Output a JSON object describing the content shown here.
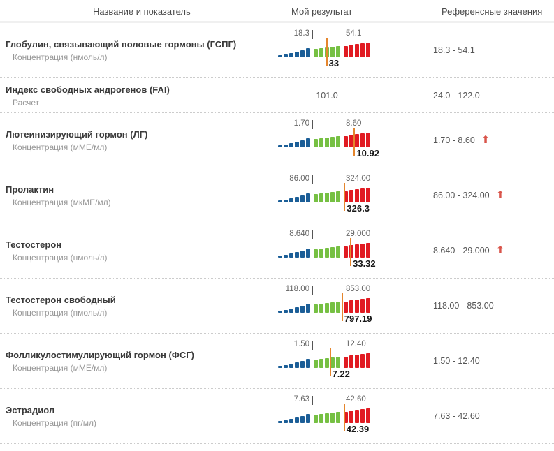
{
  "header": {
    "columns": [
      "Название и показатель",
      "Мой результат",
      "Референсные значения"
    ]
  },
  "colors": {
    "bar_blue": "#1b5e97",
    "bar_green": "#76c043",
    "bar_red": "#e11b22",
    "marker_orange": "#e5862d",
    "arrow_red": "#d9544a"
  },
  "icons": {
    "above_range_arrow": "⬆"
  },
  "chart_data": {
    "type": "table",
    "description": "Lab hormone results; each row has a segmented low(blue)/normal(green)/high(red) range bar with an orange marker at the measured value",
    "legend_zones": [
      "below-range (blue)",
      "in-range (green)",
      "above-range (red)"
    ],
    "rows": [
      {
        "name": "Глобулин, связывающий половые гормоны (ГСПГ)",
        "indicator": "Концентрация (нмоль/л)",
        "has_chart": true,
        "min": 18.3,
        "max": 54.1,
        "value": 33,
        "min_label": "18.3",
        "max_label": "54.1",
        "value_label": "33",
        "reference": "18.3 - 54.1",
        "above_range": false
      },
      {
        "name": "Индекс свободных андрогенов (FAI)",
        "indicator": "Расчет",
        "has_chart": false,
        "value": 101.0,
        "value_label": "101.0",
        "reference": "24.0 - 122.0",
        "above_range": false
      },
      {
        "name": "Лютеинизирующий гормон (ЛГ)",
        "indicator": "Концентрация (мМЕ/мл)",
        "has_chart": true,
        "min": 1.7,
        "max": 8.6,
        "value": 10.92,
        "min_label": "1.70",
        "max_label": "8.60",
        "value_label": "10.92",
        "reference": "1.70 - 8.60",
        "above_range": true
      },
      {
        "name": "Пролактин",
        "indicator": "Концентрация (мкМЕ/мл)",
        "has_chart": true,
        "min": 86.0,
        "max": 324.0,
        "value": 326.3,
        "min_label": "86.00",
        "max_label": "324.00",
        "value_label": "326.3",
        "reference": "86.00 - 324.00",
        "above_range": true
      },
      {
        "name": "Тестостерон",
        "indicator": "Концентрация (нмоль/л)",
        "has_chart": true,
        "min": 8.64,
        "max": 29.0,
        "value": 33.32,
        "min_label": "8.640",
        "max_label": "29.000",
        "value_label": "33.32",
        "reference": "8.640 - 29.000",
        "above_range": true
      },
      {
        "name": "Тестостерон свободный",
        "indicator": "Концентрация (пмоль/л)",
        "has_chart": true,
        "min": 118.0,
        "max": 853.0,
        "value": 797.19,
        "min_label": "118.00",
        "max_label": "853.00",
        "value_label": "797.19",
        "reference": "118.00 - 853.00",
        "above_range": false
      },
      {
        "name": "Фолликулостимулирующий гормон (ФСГ)",
        "indicator": "Концентрация (мМЕ/мл)",
        "has_chart": true,
        "min": 1.5,
        "max": 12.4,
        "value": 7.22,
        "min_label": "1.50",
        "max_label": "12.40",
        "value_label": "7.22",
        "reference": "1.50 - 12.40",
        "above_range": false
      },
      {
        "name": "Эстрадиол",
        "indicator": "Концентрация (пг/мл)",
        "has_chart": true,
        "min": 7.63,
        "max": 42.6,
        "value": 42.39,
        "min_label": "7.63",
        "max_label": "42.60",
        "value_label": "42.39",
        "reference": "7.63 - 42.60",
        "above_range": false
      }
    ]
  }
}
